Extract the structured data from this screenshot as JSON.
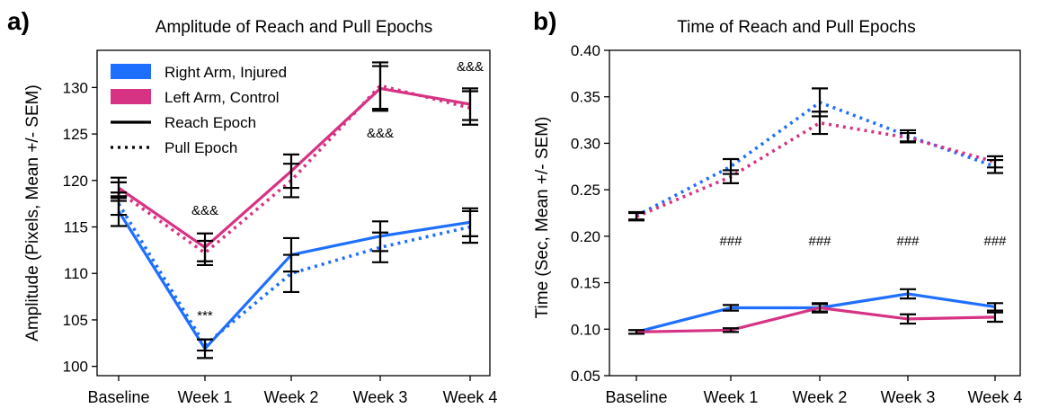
{
  "chart_data": [
    {
      "panel": "a)",
      "type": "line",
      "title": "Amplitude of Reach and Pull Epochs",
      "xlabel": "",
      "ylabel": "Amplitude (Pixels, Mean +/- SEM)",
      "categories": [
        "Baseline",
        "Week 1",
        "Week 2",
        "Week 3",
        "Week 4"
      ],
      "ylim": [
        99,
        134
      ],
      "yticks": [
        100,
        105,
        110,
        115,
        120,
        125,
        130
      ],
      "legend_position": "top-left",
      "legend": [
        {
          "label": "Right Arm, Injured",
          "kind": "patch",
          "color": "#1f6fff"
        },
        {
          "label": "Left Arm, Control",
          "kind": "patch",
          "color": "#d63384"
        },
        {
          "label": "Reach Epoch",
          "kind": "solid",
          "color": "#000000"
        },
        {
          "label": "Pull Epoch",
          "kind": "dotted",
          "color": "#000000"
        }
      ],
      "series": [
        {
          "arm": "right",
          "epoch": "reach",
          "color": "#1f6fff",
          "style": "solid",
          "values": [
            116.7,
            101.9,
            112.0,
            114.0,
            115.5
          ],
          "sem": [
            1.6,
            1.0,
            1.8,
            1.6,
            1.5
          ]
        },
        {
          "arm": "right",
          "epoch": "pull",
          "color": "#1f6fff",
          "style": "dotted",
          "values": [
            117.5,
            102.3,
            110.0,
            112.8,
            115.0
          ],
          "sem": [
            1.2,
            0.6,
            2.0,
            1.6,
            1.7
          ]
        },
        {
          "arm": "left",
          "epoch": "reach",
          "color": "#d63384",
          "style": "solid",
          "values": [
            119.2,
            112.8,
            121.0,
            129.9,
            128.2
          ],
          "sem": [
            1.1,
            1.5,
            1.8,
            2.4,
            1.7
          ]
        },
        {
          "arm": "left",
          "epoch": "pull",
          "color": "#d63384",
          "style": "dotted",
          "values": [
            118.8,
            112.2,
            120.0,
            130.2,
            127.8
          ],
          "sem": [
            1.0,
            1.3,
            1.8,
            2.5,
            1.8
          ]
        }
      ],
      "annotations": [
        {
          "text": "&&&",
          "x": "Week 1",
          "y": 116.3
        },
        {
          "text": "***",
          "x": "Week 1",
          "y": 105.0
        },
        {
          "text": "&&&",
          "x": "Week 3",
          "y": 124.6
        },
        {
          "text": "&&&",
          "x": "Week 4",
          "y": 131.8
        }
      ]
    },
    {
      "panel": "b)",
      "type": "line",
      "title": "Time of Reach and Pull Epochs",
      "xlabel": "",
      "ylabel": "Time (Sec, Mean +/- SEM)",
      "categories": [
        "Baseline",
        "Week 1",
        "Week 2",
        "Week 3",
        "Week 4"
      ],
      "ylim": [
        0.05,
        0.4
      ],
      "yticks": [
        0.05,
        0.1,
        0.15,
        0.2,
        0.25,
        0.3,
        0.35,
        0.4
      ],
      "ytick_labels": [
        "0.05",
        "0.10",
        "0.15",
        "0.20",
        "0.25",
        "0.30",
        "0.35",
        "0.40"
      ],
      "series": [
        {
          "arm": "right",
          "epoch": "reach",
          "color": "#1f6fff",
          "style": "solid",
          "values": [
            0.097,
            0.123,
            0.123,
            0.138,
            0.124
          ],
          "sem": [
            0.002,
            0.003,
            0.004,
            0.005,
            0.004
          ]
        },
        {
          "arm": "left",
          "epoch": "reach",
          "color": "#d63384",
          "style": "solid",
          "values": [
            0.097,
            0.099,
            0.123,
            0.111,
            0.113
          ],
          "sem": [
            0.002,
            0.002,
            0.005,
            0.005,
            0.005
          ]
        },
        {
          "arm": "right",
          "epoch": "pull",
          "color": "#1f6fff",
          "style": "dotted",
          "values": [
            0.222,
            0.275,
            0.344,
            0.308,
            0.275
          ],
          "sem": [
            0.004,
            0.008,
            0.015,
            0.006,
            0.007
          ]
        },
        {
          "arm": "left",
          "epoch": "pull",
          "color": "#d63384",
          "style": "dotted",
          "values": [
            0.221,
            0.264,
            0.322,
            0.306,
            0.28
          ],
          "sem": [
            0.004,
            0.007,
            0.012,
            0.005,
            0.006
          ]
        }
      ],
      "annotations": [
        {
          "text": "###",
          "x": "Week 1",
          "y": 0.19
        },
        {
          "text": "###",
          "x": "Week 2",
          "y": 0.19
        },
        {
          "text": "###",
          "x": "Week 3",
          "y": 0.19
        },
        {
          "text": "###",
          "x": "Week 4",
          "y": 0.19
        }
      ]
    }
  ]
}
